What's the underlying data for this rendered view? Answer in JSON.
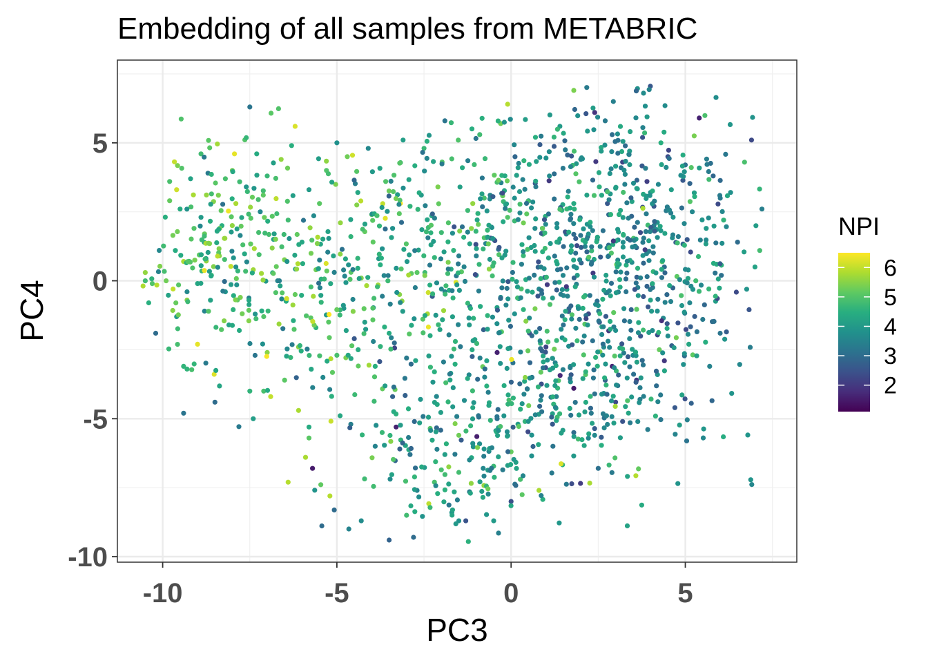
{
  "chart_data": {
    "type": "scatter",
    "title": "Embedding of all samples from METABRIC",
    "xlabel": "PC3",
    "ylabel": "PC4",
    "xlim": [
      -11.3,
      8.2
    ],
    "ylim": [
      -10.2,
      8.0
    ],
    "x_ticks": [
      -10,
      -5,
      0,
      5
    ],
    "x_tick_labels": [
      "-10",
      "-5",
      "0",
      "5"
    ],
    "y_ticks": [
      -10,
      -5,
      0,
      5
    ],
    "y_tick_labels": [
      "-10",
      "-5",
      "0",
      "5"
    ],
    "grid": true,
    "legend": {
      "title": "NPI",
      "position": "right",
      "type": "continuous",
      "colormap": "viridis",
      "range": [
        1.1,
        6.5
      ],
      "ticks": [
        2,
        3,
        4,
        5,
        6
      ],
      "tick_labels": [
        "2",
        "3",
        "4",
        "5",
        "6"
      ]
    },
    "point_count": 1750,
    "points": [
      [
        -10.5,
        0.3,
        5.6
      ],
      [
        -10.5,
        0.0,
        4.8
      ],
      [
        -10.4,
        -0.8,
        4.5
      ],
      [
        -10.3,
        -0.1,
        5.0
      ],
      [
        -10.2,
        -1.9,
        3.0
      ],
      [
        -10.1,
        1.1,
        3.6
      ],
      [
        -9.9,
        0.0,
        5.3
      ],
      [
        -9.7,
        -0.3,
        6.0
      ],
      [
        -9.8,
        2.9,
        5.2
      ],
      [
        -9.8,
        3.6,
        4.9
      ],
      [
        -9.6,
        3.3,
        6.1
      ],
      [
        -9.5,
        2.6,
        4.4
      ],
      [
        -9.6,
        -1.3,
        4.0
      ],
      [
        -9.4,
        0.7,
        5.8
      ],
      [
        -9.4,
        -4.8,
        3.2
      ],
      [
        -9.3,
        -0.4,
        3.6
      ],
      [
        -9.3,
        -0.7,
        5.5
      ],
      [
        -9.3,
        -3.2,
        4.6
      ],
      [
        -9.2,
        3.7,
        4.2
      ],
      [
        -9.1,
        1.9,
        5.0
      ],
      [
        -9.0,
        -0.1,
        4.3
      ],
      [
        -9.0,
        -2.3,
        6.3
      ],
      [
        -8.9,
        4.6,
        4.8
      ],
      [
        -8.9,
        2.3,
        4.0
      ],
      [
        -8.8,
        1.7,
        5.2
      ],
      [
        -8.8,
        -1.1,
        3.5
      ],
      [
        -8.7,
        3.9,
        3.3
      ],
      [
        -8.6,
        0.2,
        4.7
      ],
      [
        -8.5,
        -4.4,
        3.0
      ],
      [
        -8.4,
        3.1,
        5.4
      ],
      [
        -8.3,
        2.0,
        4.5
      ],
      [
        -8.2,
        -0.4,
        3.8
      ],
      [
        -8.2,
        3.7,
        4.9
      ],
      [
        -8.1,
        -1.6,
        4.2
      ],
      [
        -8.0,
        4.0,
        5.3
      ],
      [
        -7.9,
        0.5,
        3.7
      ],
      [
        -7.9,
        2.8,
        5.8
      ],
      [
        -7.8,
        -1.8,
        4.4
      ],
      [
        -7.7,
        1.3,
        4.9
      ],
      [
        -7.6,
        3.4,
        3.9
      ],
      [
        -7.5,
        6.3,
        3.2
      ],
      [
        -7.5,
        -4.0,
        4.6
      ],
      [
        -7.4,
        -5.0,
        4.1
      ],
      [
        -7.4,
        0.4,
        5.7
      ],
      [
        -7.3,
        4.6,
        4.4
      ],
      [
        -7.2,
        2.5,
        3.6
      ],
      [
        -7.1,
        -1.3,
        5.0
      ],
      [
        -7.0,
        -2.6,
        5.5
      ],
      [
        -7.0,
        3.8,
        4.7
      ],
      [
        -6.9,
        -4.2,
        6.0
      ],
      [
        -6.8,
        1.7,
        4.1
      ],
      [
        -6.7,
        0.0,
        3.5
      ],
      [
        -6.6,
        4.4,
        5.6
      ],
      [
        -6.5,
        -3.6,
        5.1
      ],
      [
        -6.4,
        2.2,
        4.8
      ],
      [
        -6.4,
        -7.3,
        5.9
      ],
      [
        -6.3,
        4.9,
        4.5
      ],
      [
        -6.2,
        -0.5,
        5.2
      ],
      [
        -6.2,
        5.6,
        6.2
      ],
      [
        -6.1,
        -4.7,
        5.8
      ],
      [
        -6.1,
        -2.4,
        5.5
      ],
      [
        -6.0,
        1.4,
        4.3
      ],
      [
        -5.9,
        -6.4,
        5.8
      ],
      [
        -5.8,
        3.3,
        4.0
      ],
      [
        -5.8,
        -5.3,
        4.4
      ],
      [
        -5.7,
        -6.8,
        1.5
      ],
      [
        -5.6,
        0.4,
        5.3
      ],
      [
        -5.6,
        -1.7,
        4.6
      ],
      [
        -5.5,
        2.8,
        5.1
      ],
      [
        -5.4,
        -3.5,
        3.6
      ],
      [
        -5.3,
        4.0,
        5.0
      ],
      [
        -5.2,
        -7.8,
        5.9
      ],
      [
        -5.1,
        0.9,
        4.2
      ],
      [
        -5.0,
        5.0,
        3.8
      ],
      [
        -5.0,
        -2.7,
        4.9
      ],
      [
        -4.9,
        2.1,
        5.6
      ],
      [
        -4.8,
        -1.0,
        3.9
      ],
      [
        -4.7,
        4.5,
        5.3
      ],
      [
        -4.6,
        -5.2,
        3.4
      ],
      [
        -4.6,
        1.6,
        4.6
      ],
      [
        -4.5,
        -2.1,
        2.6
      ],
      [
        -4.4,
        3.2,
        4.3
      ],
      [
        -4.3,
        0.1,
        5.4
      ],
      [
        -4.3,
        -8.7,
        3.7
      ],
      [
        -4.2,
        -1.5,
        4.1
      ],
      [
        -4.1,
        4.8,
        3.6
      ],
      [
        -4.0,
        2.4,
        5.2
      ],
      [
        -3.9,
        -3.1,
        4.5
      ],
      [
        -3.9,
        -6.0,
        3.5
      ],
      [
        -3.8,
        0.8,
        4.0
      ],
      [
        -3.7,
        -5.5,
        4.7
      ],
      [
        -3.6,
        3.6,
        5.0
      ],
      [
        -3.5,
        -9.4,
        2.8
      ],
      [
        -3.5,
        -1.9,
        4.4
      ],
      [
        -3.4,
        1.9,
        3.8
      ],
      [
        -3.3,
        -5.3,
        1.6
      ],
      [
        -3.2,
        -0.5,
        5.5
      ],
      [
        -3.1,
        5.1,
        4.1
      ],
      [
        -3.0,
        -2.8,
        3.3
      ],
      [
        -3.0,
        -8.5,
        4.8
      ],
      [
        -2.9,
        2.7,
        4.6
      ],
      [
        -2.8,
        -9.3,
        3.0
      ],
      [
        -2.7,
        -7.6,
        3.5
      ],
      [
        -2.7,
        0.3,
        5.1
      ],
      [
        -2.6,
        -4.3,
        3.9
      ],
      [
        -2.5,
        4.8,
        4.7
      ],
      [
        -2.4,
        -1.2,
        5.8
      ],
      [
        -2.3,
        1.3,
        4.2
      ],
      [
        -2.2,
        -7.3,
        4.9
      ],
      [
        -2.2,
        -3.3,
        4.5
      ],
      [
        -2.1,
        3.4,
        5.4
      ],
      [
        -2.0,
        -0.3,
        3.7
      ],
      [
        -1.9,
        -6.3,
        4.1
      ],
      [
        -1.9,
        5.8,
        3.2
      ],
      [
        -1.8,
        2.1,
        5.0
      ],
      [
        -1.7,
        -8.4,
        3.8
      ],
      [
        -1.6,
        -2.2,
        4.6
      ],
      [
        -1.5,
        0.9,
        3.4
      ],
      [
        -1.5,
        -5.6,
        5.3
      ],
      [
        -1.4,
        4.1,
        4.4
      ],
      [
        -1.3,
        -8.7,
        2.5
      ],
      [
        -1.2,
        -1.6,
        4.0
      ],
      [
        -1.1,
        2.8,
        5.6
      ],
      [
        -1.1,
        -4.6,
        4.3
      ],
      [
        -1.0,
        0.2,
        3.9
      ],
      [
        -0.9,
        5.3,
        4.8
      ],
      [
        -0.8,
        -6.8,
        3.6
      ],
      [
        -0.7,
        -2.9,
        4.2
      ],
      [
        -0.6,
        3.1,
        3.5
      ],
      [
        -0.5,
        -8.7,
        4.0
      ],
      [
        -0.5,
        1.5,
        4.6
      ],
      [
        -0.4,
        -5.0,
        3.1
      ],
      [
        -0.3,
        5.7,
        5.3
      ],
      [
        -0.3,
        -0.6,
        3.7
      ],
      [
        -0.2,
        -3.8,
        4.4
      ],
      [
        -0.1,
        2.3,
        5.0
      ],
      [
        -0.1,
        6.4,
        5.9
      ],
      [
        0.0,
        -6.2,
        5.2
      ],
      [
        0.0,
        -8.0,
        2.4
      ],
      [
        0.1,
        -1.2,
        3.8
      ],
      [
        0.2,
        4.1,
        4.1
      ],
      [
        0.3,
        0.6,
        3.4
      ],
      [
        0.4,
        -5.1,
        4.6
      ],
      [
        0.5,
        2.9,
        3.9
      ],
      [
        0.6,
        -3.5,
        3.3
      ],
      [
        0.7,
        5.2,
        4.5
      ],
      [
        0.8,
        -0.3,
        3.6
      ],
      [
        0.8,
        -7.6,
        5.8
      ],
      [
        0.9,
        1.9,
        4.2
      ],
      [
        1.0,
        -2.4,
        2.2
      ],
      [
        1.1,
        3.8,
        3.7
      ],
      [
        1.2,
        -6.0,
        3.2
      ],
      [
        1.3,
        0.7,
        4.4
      ],
      [
        1.3,
        -4.2,
        3.5
      ],
      [
        1.4,
        5.6,
        4.0
      ],
      [
        1.5,
        -1.6,
        3.1
      ],
      [
        1.6,
        2.6,
        4.7
      ],
      [
        1.7,
        -3.1,
        3.8
      ],
      [
        1.8,
        6.9,
        5.4
      ],
      [
        1.8,
        -5.5,
        3.0
      ],
      [
        1.9,
        0.2,
        4.1
      ],
      [
        2.0,
        4.4,
        3.4
      ],
      [
        2.1,
        -2.0,
        3.6
      ],
      [
        2.2,
        1.6,
        2.8
      ],
      [
        2.3,
        -4.8,
        3.3
      ],
      [
        2.4,
        6.1,
        1.9
      ],
      [
        2.5,
        -0.9,
        3.9
      ],
      [
        2.5,
        -6.8,
        3.1
      ],
      [
        2.6,
        3.1,
        4.3
      ],
      [
        2.7,
        -3.6,
        2.7
      ],
      [
        2.8,
        0.9,
        3.5
      ],
      [
        2.9,
        5.3,
        3.0
      ],
      [
        3.0,
        -1.8,
        3.8
      ],
      [
        3.1,
        2.4,
        4.6
      ],
      [
        3.2,
        -5.1,
        2.5
      ],
      [
        3.3,
        -0.4,
        3.2
      ],
      [
        3.4,
        4.7,
        4.0
      ],
      [
        3.5,
        -2.7,
        3.6
      ],
      [
        3.6,
        1.2,
        2.9
      ],
      [
        3.7,
        -4.3,
        3.4
      ],
      [
        3.8,
        6.8,
        3.7
      ],
      [
        3.9,
        3.6,
        2.1
      ],
      [
        4.0,
        -0.7,
        4.2
      ],
      [
        4.1,
        2.0,
        3.3
      ],
      [
        4.2,
        -3.4,
        3.9
      ],
      [
        4.3,
        5.0,
        4.5
      ],
      [
        4.4,
        0.5,
        3.0
      ],
      [
        4.5,
        -2.0,
        3.7
      ],
      [
        4.6,
        3.3,
        4.1
      ],
      [
        4.7,
        -4.6,
        2.6
      ],
      [
        4.8,
        1.6,
        3.4
      ],
      [
        4.9,
        -0.9,
        3.9
      ],
      [
        5.0,
        4.2,
        3.1
      ],
      [
        5.1,
        -2.3,
        4.3
      ],
      [
        5.2,
        2.5,
        3.6
      ],
      [
        5.3,
        0.0,
        4.8
      ],
      [
        5.4,
        5.9,
        1.6
      ],
      [
        5.5,
        -1.4,
        3.3
      ],
      [
        5.6,
        1.9,
        4.0
      ],
      [
        5.7,
        -3.1,
        3.5
      ],
      [
        5.8,
        3.8,
        2.9
      ],
      [
        5.9,
        0.6,
        4.4
      ],
      [
        6.0,
        -1.9,
        3.2
      ],
      [
        6.1,
        2.2,
        4.6
      ],
      [
        6.3,
        3.2,
        3.8
      ],
      [
        6.5,
        1.4,
        3.0
      ],
      [
        6.7,
        4.3,
        4.9
      ],
      [
        6.9,
        5.1,
        2.3
      ],
      [
        7.2,
        2.6,
        3.4
      ],
      [
        7.0,
        0.5,
        4.2
      ],
      [
        -1.0,
        0.9,
        3.5
      ],
      [
        0.9,
        1.9,
        5.2
      ],
      [
        2.4,
        -4.1,
        3.1
      ],
      [
        3.4,
        -2.1,
        3.6
      ],
      [
        4.0,
        3.2,
        3.8
      ],
      [
        -1.5,
        -8.7,
        3.8
      ],
      [
        -3.4,
        -4.2,
        2.8
      ],
      [
        -5.8,
        -5.7,
        5.1
      ],
      [
        -7.1,
        -4.0,
        4.9
      ],
      [
        -9.4,
        -3.1,
        4.6
      ],
      [
        -0.4,
        -2.6,
        1.6
      ],
      [
        1.8,
        -3.9,
        1.5
      ],
      [
        3.0,
        -4.4,
        2.3
      ],
      [
        4.4,
        -2.9,
        2.0
      ],
      [
        2.9,
        -3.1,
        1.7
      ],
      [
        3.9,
        -0.2,
        2.8
      ],
      [
        4.1,
        2.7,
        2.6
      ],
      [
        3.2,
        4.3,
        2.2
      ],
      [
        4.5,
        4.5,
        2.4
      ],
      [
        3.6,
        -3.6,
        1.9
      ]
    ]
  }
}
